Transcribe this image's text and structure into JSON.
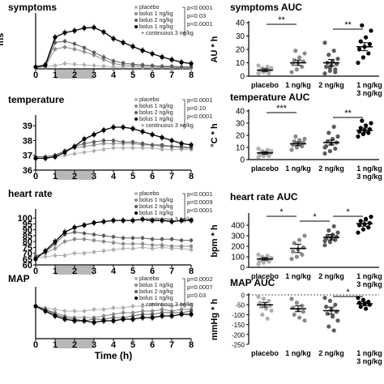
{
  "time_axis": {
    "xlabel": "Time (h)",
    "ticks": [
      "0",
      "1",
      "2",
      "3",
      "4",
      "5",
      "6",
      "7",
      "8"
    ],
    "shaded_hours": [
      1,
      3
    ]
  },
  "colors": {
    "placebo": "#b0b0b0",
    "bolus1": "#8a8a8a",
    "bolus2": "#5c5c5c",
    "continuous": "#000000",
    "shade": "#b8b8b8"
  },
  "legend_labels": [
    "placebo",
    "bolus 1 ng/kg",
    "bolus 2 ng/kg",
    "bolus 1 ng/kg",
    "+ continuous 3 ng/kg"
  ],
  "chart_data": [
    {
      "type": "line",
      "title": "symptoms",
      "ylabel": "ms",
      "ylim": [
        0,
        8
      ],
      "yticks": [],
      "pvalues": [
        "p<0.0001",
        "p=0.03",
        "p<0.0001"
      ],
      "x": [
        0,
        0.5,
        1,
        1.5,
        2,
        2.5,
        3,
        3.5,
        4,
        4.5,
        5,
        5.5,
        6,
        6.5,
        7,
        7.5,
        8
      ],
      "series": [
        {
          "name": "placebo",
          "values": [
            0.2,
            0.3,
            0.5,
            0.8,
            0.7,
            0.6,
            0.5,
            0.4,
            0.3,
            0.3,
            0.3,
            0.2,
            0.2,
            0.2,
            0.2,
            0.1,
            0.1
          ]
        },
        {
          "name": "bolus 1 ng/kg",
          "values": [
            0.2,
            0.4,
            3.0,
            3.3,
            3.0,
            2.6,
            2.1,
            1.4,
            0.8,
            0.6,
            0.5,
            0.4,
            0.4,
            0.3,
            0.3,
            0.2,
            0.2
          ]
        },
        {
          "name": "bolus 2 ng/kg",
          "values": [
            0.3,
            0.5,
            4.0,
            4.2,
            3.8,
            3.2,
            2.5,
            1.8,
            1.2,
            0.9,
            0.7,
            0.6,
            0.5,
            0.4,
            0.4,
            0.3,
            0.3
          ]
        },
        {
          "name": "bolus 1 ng/kg + continuous 3 ng/kg",
          "values": [
            0.3,
            0.6,
            4.8,
            5.5,
            5.8,
            6.2,
            6.3,
            5.6,
            4.6,
            4.0,
            3.4,
            2.8,
            2.3,
            1.8,
            1.4,
            1.0,
            0.8
          ]
        }
      ]
    },
    {
      "type": "line",
      "title": "temperature",
      "ylabel": "",
      "ylim": [
        36,
        39.5
      ],
      "yticks": [
        "36",
        "37",
        "38",
        "39"
      ],
      "pvalues": [
        "p<0.0001",
        "p=0.10",
        "p<0.0001"
      ],
      "x": [
        0,
        0.5,
        1,
        1.5,
        2,
        2.5,
        3,
        3.5,
        4,
        4.5,
        5,
        5.5,
        6,
        6.5,
        7,
        7.5,
        8
      ],
      "series": [
        {
          "name": "placebo",
          "values": [
            36.8,
            36.8,
            36.9,
            37.0,
            37.1,
            37.2,
            37.3,
            37.4,
            37.5,
            37.5,
            37.5,
            37.5,
            37.5,
            37.4,
            37.4,
            37.4,
            37.4
          ]
        },
        {
          "name": "bolus 1 ng/kg",
          "values": [
            36.9,
            36.9,
            37.0,
            37.3,
            37.5,
            37.6,
            37.7,
            37.8,
            37.8,
            37.8,
            37.8,
            37.7,
            37.7,
            37.6,
            37.6,
            37.5,
            37.5
          ]
        },
        {
          "name": "bolus 2 ng/kg",
          "values": [
            36.9,
            36.9,
            37.0,
            37.3,
            37.6,
            37.8,
            37.9,
            38.0,
            38.0,
            37.9,
            37.9,
            37.8,
            37.7,
            37.7,
            37.6,
            37.6,
            37.5
          ]
        },
        {
          "name": "bolus 1 ng/kg + continuous 3 ng/kg",
          "values": [
            36.8,
            36.8,
            36.9,
            37.2,
            37.6,
            38.1,
            38.4,
            38.7,
            38.9,
            38.9,
            38.8,
            38.6,
            38.4,
            38.2,
            38.0,
            37.8,
            37.7
          ]
        }
      ]
    },
    {
      "type": "line",
      "title": "heart rate",
      "ylabel": "",
      "ylim": [
        60,
        105
      ],
      "yticks": [
        "60",
        "65",
        "70",
        "75",
        "80",
        "85",
        "90",
        "95",
        "100"
      ],
      "pvalues": [
        "p<0.0001",
        "p=0.0009",
        "p<0.0001"
      ],
      "x": [
        0,
        0.5,
        1,
        1.5,
        2,
        2.5,
        3,
        3.5,
        4,
        4.5,
        5,
        5.5,
        6,
        6.5,
        7,
        7.5,
        8
      ],
      "series": [
        {
          "name": "placebo",
          "values": [
            66,
            67,
            68,
            68,
            70,
            70,
            71,
            72,
            73,
            74,
            74,
            75,
            74,
            75,
            74,
            74,
            73
          ]
        },
        {
          "name": "bolus 1 ng/kg",
          "values": [
            68,
            70,
            74,
            80,
            82,
            82,
            81,
            80,
            79,
            78,
            78,
            78,
            77,
            77,
            76,
            76,
            76
          ]
        },
        {
          "name": "bolus 2 ng/kg",
          "values": [
            67,
            71,
            78,
            86,
            88,
            87,
            86,
            85,
            84,
            83,
            83,
            83,
            82,
            82,
            82,
            81,
            81
          ]
        },
        {
          "name": "bolus 1 ng/kg + continuous 3 ng/kg",
          "values": [
            65,
            72,
            80,
            88,
            92,
            94,
            96,
            97,
            98,
            98,
            98,
            99,
            98,
            98,
            97,
            98,
            98
          ]
        }
      ]
    },
    {
      "type": "line",
      "title": "MAP",
      "ylabel": "",
      "ylim": [
        -20,
        10
      ],
      "yticks": [],
      "pvalues": [
        "p=0.0002",
        "p=0.0007",
        "p=0.03"
      ],
      "x": [
        0,
        0.5,
        1,
        1.5,
        2,
        2.5,
        3,
        3.5,
        4,
        4.5,
        5,
        5.5,
        6,
        6.5,
        7,
        7.5,
        8
      ],
      "series": [
        {
          "name": "placebo",
          "values": [
            0,
            -1,
            -2,
            -3,
            -3,
            -3,
            -2,
            -2,
            -1,
            -1,
            0,
            0,
            1,
            1,
            0,
            1,
            1
          ]
        },
        {
          "name": "bolus 1 ng/kg",
          "values": [
            0,
            -2,
            -4,
            -6,
            -7,
            -7,
            -7,
            -6,
            -5,
            -4,
            -4,
            -3,
            -3,
            -2,
            -3,
            -2,
            -2
          ]
        },
        {
          "name": "bolus 2 ng/kg",
          "values": [
            0,
            -2,
            -5,
            -7,
            -8,
            -9,
            -8,
            -8,
            -7,
            -7,
            -6,
            -5,
            -5,
            -4,
            -4,
            -4,
            -3
          ]
        },
        {
          "name": "bolus 1 ng/kg + continuous 3 ng/kg",
          "values": [
            0,
            -3,
            -6,
            -8,
            -9,
            -9,
            -10,
            -9,
            -9,
            -8,
            -8,
            -7,
            -7,
            -6,
            -6,
            -5,
            -5
          ]
        }
      ]
    },
    {
      "type": "scatter",
      "title": "symptoms AUC",
      "ylabel": "AU * h",
      "ylim": [
        0,
        40
      ],
      "yticks": [
        "0",
        "10",
        "20",
        "30",
        "40"
      ],
      "categories": [
        "placebo",
        "1 ng/kg",
        "2 ng/kg",
        "1 ng/kg + 3 ng/kg"
      ],
      "category_labels": [
        "placebo",
        "1 ng/kg",
        "2 ng/kg",
        "1 ng/kg",
        "3 ng/kg"
      ],
      "groups": [
        {
          "name": "placebo",
          "mean": 4.5,
          "sem": 1,
          "points": [
            2,
            3,
            3,
            4,
            4,
            5,
            5,
            5,
            6,
            6,
            7,
            8,
            3,
            2,
            4
          ]
        },
        {
          "name": "1 ng/kg",
          "mean": 10,
          "sem": 2,
          "points": [
            3,
            5,
            7,
            9,
            10,
            11,
            12,
            14,
            17,
            19
          ]
        },
        {
          "name": "2 ng/kg",
          "mean": 10,
          "sem": 2.5,
          "points": [
            2,
            4,
            5,
            7,
            8,
            9,
            10,
            11,
            13,
            16,
            19,
            25,
            6,
            3
          ]
        },
        {
          "name": "1 ng/kg + 3 ng/kg",
          "mean": 22,
          "sem": 3,
          "points": [
            10,
            14,
            17,
            20,
            22,
            24,
            26,
            29,
            34,
            38
          ]
        }
      ],
      "brackets": [
        {
          "from": 0,
          "to": 1,
          "label": "**"
        },
        {
          "from": 2,
          "to": 3,
          "label": "**"
        }
      ]
    },
    {
      "type": "scatter",
      "title": "temperature AUC",
      "ylabel": "°C * h",
      "ylim": [
        0,
        40
      ],
      "yticks": [
        "0",
        "10",
        "20",
        "30",
        "40"
      ],
      "categories": [
        "placebo",
        "1 ng/kg",
        "2 ng/kg",
        "1 ng/kg + 3 ng/kg"
      ],
      "category_labels": [
        "placebo",
        "1 ng/kg",
        "2 ng/kg",
        "1 ng/kg",
        "3 ng/kg"
      ],
      "groups": [
        {
          "name": "placebo",
          "mean": 5.5,
          "sem": 1,
          "points": [
            2,
            3,
            3,
            4,
            5,
            5,
            6,
            6,
            7,
            7,
            8,
            9,
            4,
            5
          ]
        },
        {
          "name": "1 ng/kg",
          "mean": 13,
          "sem": 1.5,
          "points": [
            8,
            10,
            11,
            12,
            13,
            14,
            15,
            16,
            17,
            19
          ]
        },
        {
          "name": "2 ng/kg",
          "mean": 14,
          "sem": 2,
          "points": [
            5,
            7,
            9,
            11,
            13,
            14,
            15,
            17,
            19,
            22,
            27,
            10
          ]
        },
        {
          "name": "1 ng/kg + 3 ng/kg",
          "mean": 24,
          "sem": 2,
          "points": [
            19,
            21,
            22,
            23,
            24,
            25,
            26,
            28,
            30,
            32
          ]
        }
      ],
      "brackets": [
        {
          "from": 0,
          "to": 1,
          "label": "***"
        },
        {
          "from": 2,
          "to": 3,
          "label": "**"
        }
      ]
    },
    {
      "type": "scatter",
      "title": "heart rate AUC",
      "ylabel": "bpm * h",
      "ylim": [
        0,
        500
      ],
      "yticks": [
        "0",
        "100",
        "200",
        "300",
        "400"
      ],
      "categories": [
        "placebo",
        "1 ng/kg",
        "2 ng/kg",
        "1 ng/kg + 3 ng/kg"
      ],
      "category_labels": [
        "placebo",
        "1 ng/kg",
        "2 ng/kg",
        "1 ng/kg",
        "3 ng/kg"
      ],
      "groups": [
        {
          "name": "placebo",
          "mean": 80,
          "sem": 12,
          "points": [
            30,
            45,
            55,
            60,
            70,
            75,
            80,
            85,
            90,
            100,
            110,
            120,
            65
          ]
        },
        {
          "name": "1 ng/kg",
          "mean": 180,
          "sem": 40,
          "points": [
            80,
            100,
            120,
            150,
            170,
            190,
            230,
            260,
            300
          ]
        },
        {
          "name": "2 ng/kg",
          "mean": 285,
          "sem": 25,
          "points": [
            210,
            240,
            260,
            270,
            280,
            290,
            300,
            310,
            330,
            350,
            390,
            250
          ]
        },
        {
          "name": "1 ng/kg + 3 ng/kg",
          "mean": 415,
          "sem": 25,
          "points": [
            330,
            360,
            380,
            400,
            410,
            420,
            440,
            460,
            480
          ]
        }
      ],
      "brackets": [
        {
          "from": 0,
          "to": 1,
          "label": "*"
        },
        {
          "from": 1,
          "to": 2,
          "label": "*"
        },
        {
          "from": 2,
          "to": 3,
          "label": "*"
        }
      ]
    },
    {
      "type": "scatter",
      "title": "MAP AUC",
      "ylabel": "mmHg * h",
      "ylim": [
        -250,
        0
      ],
      "yticks": [
        "0",
        "-50",
        "-100",
        "-150",
        "-200",
        "-250"
      ],
      "categories": [
        "placebo",
        "1 ng/kg",
        "2 ng/kg",
        "1 ng/kg + 3 ng/kg"
      ],
      "category_labels": [
        "placebo",
        "1 ng/kg",
        "2 ng/kg",
        "1 ng/kg",
        "3 ng/kg"
      ],
      "groups": [
        {
          "name": "placebo",
          "mean": -50,
          "sem": 12,
          "points": [
            -10,
            -20,
            -30,
            -40,
            -50,
            -55,
            -60,
            -70,
            -80,
            -100,
            -120
          ]
        },
        {
          "name": "1 ng/kg",
          "mean": -70,
          "sem": 15,
          "points": [
            -20,
            -40,
            -55,
            -65,
            -75,
            -85,
            -100,
            -115,
            -130
          ]
        },
        {
          "name": "2 ng/kg",
          "mean": -80,
          "sem": 18,
          "points": [
            -15,
            -30,
            -50,
            -60,
            -75,
            -85,
            -95,
            -110,
            -130,
            -160,
            -180
          ]
        },
        {
          "name": "1 ng/kg + 3 ng/kg",
          "mean": -45,
          "sem": 10,
          "points": [
            -15,
            -25,
            -35,
            -40,
            -45,
            -50,
            -60,
            -70
          ]
        }
      ],
      "brackets": [
        {
          "from": 2,
          "to": 3,
          "label": "*"
        }
      ]
    }
  ]
}
